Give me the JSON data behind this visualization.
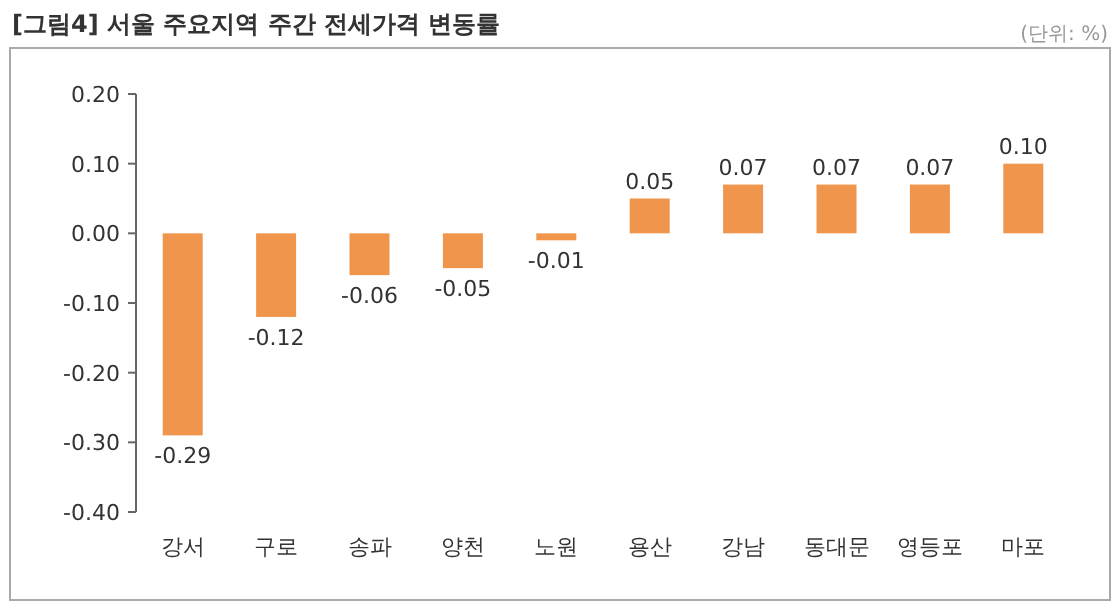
{
  "chart_data": {
    "type": "bar",
    "title": "[그림4] 서울 주요지역 주간 전세가격 변동률",
    "annotations": [
      "(단위: %)"
    ],
    "categories": [
      "강서",
      "구로",
      "송파",
      "양천",
      "노원",
      "용산",
      "강남",
      "동대문",
      "영등포",
      "마포"
    ],
    "values": [
      -0.29,
      -0.12,
      -0.06,
      -0.05,
      -0.01,
      0.05,
      0.07,
      0.07,
      0.07,
      0.1
    ],
    "color": "#f0964c",
    "ylim": [
      -0.4,
      0.2
    ],
    "yticks": [
      {
        "value": -0.4,
        "label": "-0.40"
      },
      {
        "value": -0.3,
        "label": "-0.30"
      },
      {
        "value": -0.2,
        "label": "-0.20"
      },
      {
        "value": -0.1,
        "label": "-0.10"
      },
      {
        "value": 0,
        "label": "0.00"
      },
      {
        "value": 0.1,
        "label": "0.10"
      },
      {
        "value": 0.2,
        "label": "0.20"
      }
    ],
    "value_labels": [
      "-0.29",
      "-0.12",
      "-0.06",
      "-0.05",
      "-0.01",
      "0.05",
      "0.07",
      "0.07",
      "0.07",
      "0.10"
    ],
    "grid": false
  }
}
